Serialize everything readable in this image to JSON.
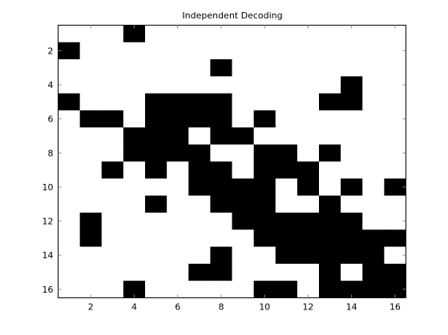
{
  "chart_data": {
    "type": "heatmap",
    "title": "Independent Decoding",
    "xlabel": "",
    "ylabel": "",
    "xlim": [
      0.5,
      16.5
    ],
    "ylim": [
      16.5,
      0.5
    ],
    "x_ticks": [
      2,
      4,
      6,
      8,
      10,
      12,
      14,
      16
    ],
    "y_ticks": [
      2,
      4,
      6,
      8,
      10,
      12,
      14,
      16
    ],
    "x_tick_labels": [
      "2",
      "4",
      "6",
      "8",
      "10",
      "12",
      "14",
      "16"
    ],
    "y_tick_labels": [
      "2",
      "4",
      "6",
      "8",
      "10",
      "12",
      "14",
      "16"
    ],
    "colormap": [
      "#ffffff",
      "#000000"
    ],
    "rows": [
      [
        0,
        0,
        0,
        1,
        0,
        0,
        0,
        0,
        0,
        0,
        0,
        0,
        0,
        0,
        0,
        0
      ],
      [
        1,
        0,
        0,
        0,
        0,
        0,
        0,
        0,
        0,
        0,
        0,
        0,
        0,
        0,
        0,
        0
      ],
      [
        0,
        0,
        0,
        0,
        0,
        0,
        0,
        1,
        0,
        0,
        0,
        0,
        0,
        0,
        0,
        0
      ],
      [
        0,
        0,
        0,
        0,
        0,
        0,
        0,
        0,
        0,
        0,
        0,
        0,
        0,
        1,
        0,
        0
      ],
      [
        1,
        0,
        0,
        0,
        1,
        1,
        1,
        1,
        0,
        0,
        0,
        0,
        1,
        1,
        0,
        0
      ],
      [
        0,
        1,
        1,
        0,
        1,
        1,
        1,
        1,
        0,
        1,
        0,
        0,
        0,
        0,
        0,
        0
      ],
      [
        0,
        0,
        0,
        1,
        1,
        1,
        0,
        1,
        1,
        0,
        0,
        0,
        0,
        0,
        0,
        0
      ],
      [
        0,
        0,
        0,
        1,
        1,
        1,
        1,
        0,
        0,
        1,
        1,
        0,
        1,
        0,
        0,
        0
      ],
      [
        0,
        0,
        1,
        0,
        1,
        0,
        1,
        1,
        0,
        1,
        1,
        1,
        0,
        0,
        0,
        0
      ],
      [
        0,
        0,
        0,
        0,
        0,
        0,
        1,
        1,
        1,
        1,
        0,
        1,
        0,
        1,
        0,
        1
      ],
      [
        0,
        0,
        0,
        0,
        1,
        0,
        0,
        1,
        1,
        1,
        0,
        0,
        1,
        0,
        0,
        0
      ],
      [
        0,
        1,
        0,
        0,
        0,
        0,
        0,
        0,
        1,
        1,
        1,
        1,
        1,
        1,
        0,
        0
      ],
      [
        0,
        1,
        0,
        0,
        0,
        0,
        0,
        0,
        0,
        1,
        1,
        1,
        1,
        1,
        1,
        1
      ],
      [
        0,
        0,
        0,
        0,
        0,
        0,
        0,
        1,
        0,
        0,
        1,
        1,
        1,
        1,
        1,
        0
      ],
      [
        0,
        0,
        0,
        0,
        0,
        0,
        1,
        1,
        0,
        0,
        0,
        0,
        1,
        0,
        1,
        1
      ],
      [
        0,
        0,
        0,
        1,
        0,
        0,
        0,
        0,
        0,
        1,
        1,
        0,
        1,
        1,
        1,
        1
      ]
    ]
  }
}
